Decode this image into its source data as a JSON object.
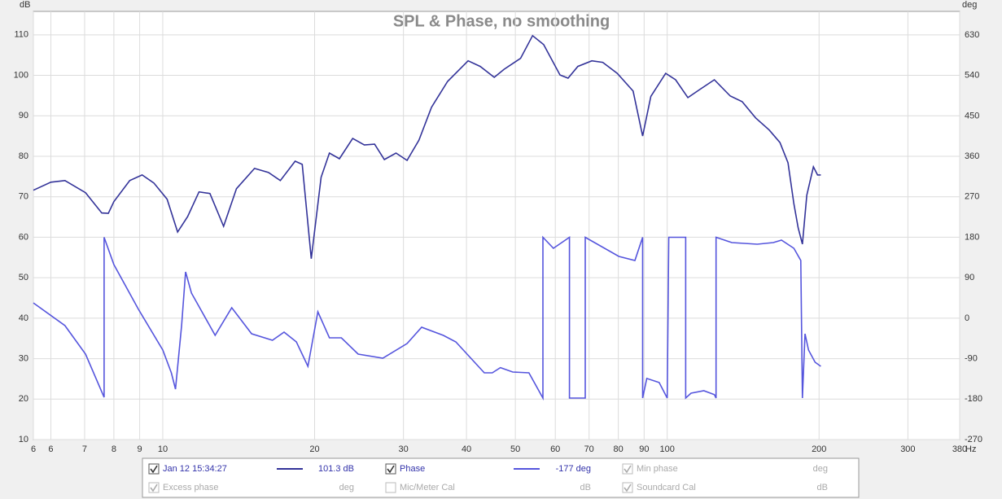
{
  "chart_data": {
    "type": "line",
    "title": "SPL & Phase, no smoothing",
    "y_label": "dB",
    "y2_label": "deg",
    "x_unit": "Hz",
    "xlog": true,
    "grid": true,
    "xlim": [
      5.54,
      380
    ],
    "xticks": [
      {
        "value": 5.54,
        "label": "6"
      },
      6,
      7,
      8,
      9,
      10,
      20,
      30,
      40,
      50,
      60,
      70,
      80,
      90,
      100,
      200,
      300,
      380
    ],
    "ylim": [
      10,
      115.8
    ],
    "yticks": [
      10,
      20,
      30,
      40,
      50,
      60,
      70,
      80,
      90,
      100,
      110
    ],
    "y2lim": [
      -270,
      682.5
    ],
    "y2ticks": [
      -270,
      -180,
      -90,
      0,
      90,
      180,
      270,
      360,
      450,
      540,
      630
    ],
    "series": [
      {
        "name": "Jan 12 15:34:27",
        "color": "#333399",
        "x": [
          5.54,
          6,
          6.4,
          7.03,
          7.57,
          7.8,
          8.0,
          8.6,
          9.1,
          9.6,
          10.2,
          10.7,
          11.2,
          11.8,
          12.4,
          13.2,
          14.0,
          15.2,
          16.2,
          17.1,
          18.3,
          18.9,
          19.7,
          20.6,
          21.4,
          22.4,
          23.8,
          25.1,
          26.3,
          27.5,
          29,
          30.5,
          32.2,
          34.1,
          36.7,
          40.3,
          42.6,
          45.4,
          47.5,
          51.2,
          54.1,
          56.9,
          61.3,
          63.6,
          66.5,
          70.9,
          74.5,
          79.6,
          85.6,
          89.4,
          92.8,
          99.3,
          103.9,
          109.9,
          116,
          124,
          133.3,
          140.8,
          149.7,
          159.3,
          167.3,
          173.6,
          178.3,
          181.8,
          185.4,
          189.1,
          194.9,
          198.6,
          201.6
        ],
        "values": [
          71.6,
          73.6,
          74,
          71,
          66,
          65.9,
          68.8,
          74,
          75.4,
          73.4,
          69.4,
          61.3,
          65.1,
          71.2,
          70.8,
          62.7,
          72,
          77,
          76,
          74,
          78.8,
          78,
          54.7,
          74.8,
          80.8,
          79.4,
          84.4,
          82.8,
          83,
          79.2,
          80.8,
          79,
          84,
          92.1,
          98.5,
          103.6,
          102.2,
          99.5,
          101.5,
          104.2,
          109.8,
          107.6,
          100.1,
          99.3,
          102.2,
          103.6,
          103.2,
          100.5,
          96.1,
          85,
          94.8,
          100.5,
          98.9,
          94.5,
          96.5,
          98.9,
          94.9,
          93.5,
          89.5,
          86.5,
          83.4,
          78.4,
          68.3,
          62.3,
          58.3,
          70.4,
          77.4,
          75.4,
          75.4
        ]
      },
      {
        "name": "Phase",
        "color": "#5555dd",
        "axis": "y2",
        "x": [
          5.54,
          6.4,
          7.03,
          7.65,
          7.65,
          8.0,
          8.95,
          10,
          10.4,
          10.6,
          10.9,
          11.1,
          11.4,
          12.7,
          13.7,
          15.0,
          16.5,
          17.4,
          18.4,
          19.4,
          20.3,
          21.4,
          22.6,
          24.4,
          27.3,
          30.5,
          32.6,
          36,
          38.1,
          43.4,
          45,
          46.7,
          49.4,
          53.2,
          56.7,
          56.7,
          59.5,
          64.0,
          64.0,
          68.8,
          68.8,
          80.2,
          86.3,
          89.4,
          89.4,
          91.1,
          96.4,
          100,
          100.7,
          108.8,
          108.8,
          111.5,
          118.2,
          124,
          125,
          125,
          134.3,
          150.8,
          162.3,
          168.5,
          178.3,
          184,
          185.4,
          187.6,
          190.6,
          196.4,
          201.6
        ],
        "values": [
          34,
          -16.5,
          -79.9,
          -175.8,
          180,
          119.4,
          19.7,
          -70.8,
          -121.5,
          -157.7,
          -16.5,
          103,
          56,
          -38,
          23.4,
          -34.6,
          -49,
          -31,
          -52.7,
          -107,
          14.3,
          -43.6,
          -43.6,
          -79.9,
          -89,
          -56.3,
          -20.1,
          -38.2,
          -52.7,
          -121.5,
          -121.5,
          -110,
          -119.7,
          -121.5,
          -177.6,
          180,
          155.6,
          180,
          -177.6,
          -177.6,
          180,
          137.5,
          128.4,
          180,
          -177.6,
          -134,
          -143,
          -177.6,
          180,
          180,
          -177.6,
          -166.8,
          -161.3,
          -170,
          -177.6,
          180,
          168.2,
          164.6,
          168.2,
          173.7,
          155.6,
          128.4,
          -177.6,
          -34.6,
          -70.8,
          -98,
          -107
        ]
      }
    ]
  },
  "legend_panel": {
    "items": [
      {
        "label": "Jan 12 15:34:27",
        "readout": "101.3 dB",
        "checked": true,
        "enabled": true
      },
      {
        "label": "Phase",
        "readout": "-177 deg",
        "checked": true,
        "enabled": true
      },
      {
        "label": "Min phase",
        "readout": "deg",
        "checked": true,
        "enabled": false
      },
      {
        "label": "Excess phase",
        "readout": "deg",
        "checked": true,
        "enabled": false
      },
      {
        "label": "Mic/Meter Cal",
        "readout": "dB",
        "checked": false,
        "enabled": false
      },
      {
        "label": "Soundcard Cal",
        "readout": "dB",
        "checked": true,
        "enabled": false
      }
    ]
  }
}
